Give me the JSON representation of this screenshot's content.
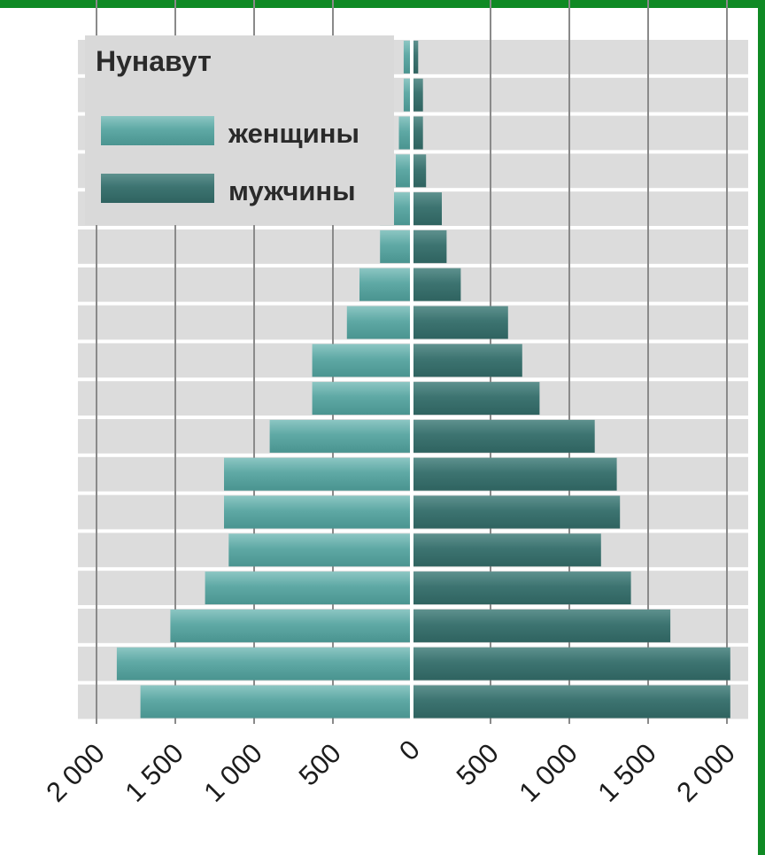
{
  "chart_data": {
    "type": "bar",
    "orientation": "horizontal",
    "title": "Нунавут",
    "xlim": [
      -2000,
      2000
    ],
    "grid": true,
    "legend_placement": "top-left",
    "x_tick_values": [
      -2000,
      -1500,
      -1000,
      -500,
      0,
      500,
      1000,
      1500,
      2000
    ],
    "x_tick_labels": [
      "2 000",
      "1 500",
      "1 000",
      "500",
      "0",
      "500",
      "1 000",
      "1 500",
      "2 000"
    ],
    "series": [
      {
        "name": "женщины",
        "side": "left",
        "color": "#5fa9a5",
        "values": [
          40,
          40,
          70,
          90,
          190,
          190,
          320,
          400,
          620,
          620,
          890,
          1180,
          1180,
          1150,
          1300,
          1520,
          1860,
          1710
        ]
      },
      {
        "name": "мужчины",
        "side": "right",
        "color": "#3d7471",
        "values": [
          30,
          60,
          60,
          80,
          180,
          210,
          300,
          600,
          690,
          800,
          1150,
          1290,
          1310,
          1190,
          1380,
          1630,
          2010,
          2010
        ]
      }
    ]
  }
}
